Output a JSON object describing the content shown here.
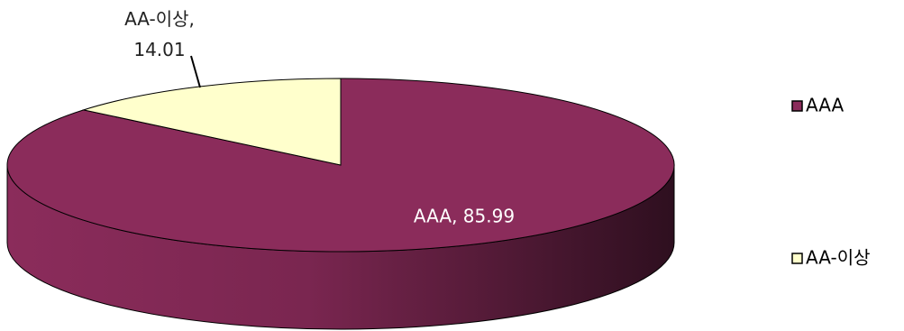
{
  "chart_data": {
    "type": "pie",
    "categories": [
      "AAA",
      "AA-이상"
    ],
    "values": [
      85.99,
      14.01
    ],
    "value_labels": [
      "AAA, 85.99",
      "AA-이상, 14.01"
    ],
    "colors": [
      "#8b2c5b",
      "#ffffcc"
    ],
    "legend": "right"
  }
}
